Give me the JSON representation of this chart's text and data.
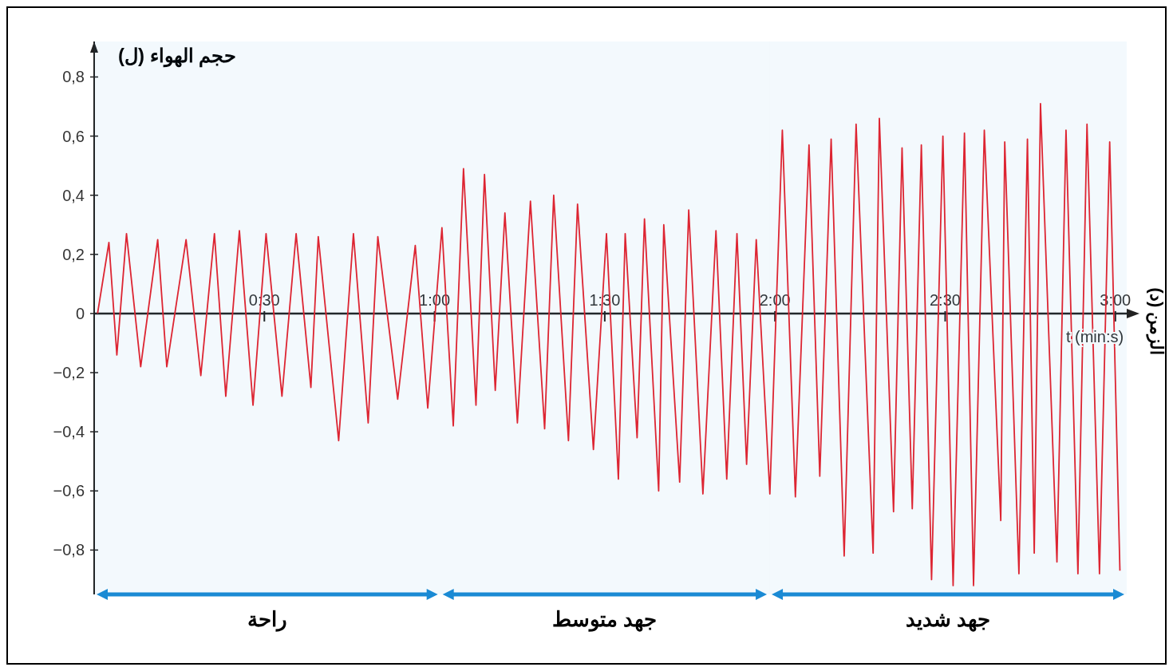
{
  "chart_data": {
    "type": "line",
    "ylabel": "حجم الهواء (ل)",
    "xlabel": "t (min:s)",
    "annotations": [
      "الزمن (د)"
    ],
    "line_style": "solid",
    "xlim": [
      0,
      182
    ],
    "ylim": [
      -0.95,
      0.92
    ],
    "xticks": [
      {
        "value": 30,
        "label": "0:30"
      },
      {
        "value": 60,
        "label": "1:00"
      },
      {
        "value": 90,
        "label": "1:30"
      },
      {
        "value": 120,
        "label": "2:00"
      },
      {
        "value": 150,
        "label": "2:30"
      },
      {
        "value": 180,
        "label": "3:00"
      }
    ],
    "yticks": [
      {
        "value": -0.8,
        "label": "−0,8"
      },
      {
        "value": -0.6,
        "label": "−0,6"
      },
      {
        "value": -0.4,
        "label": "−0,4"
      },
      {
        "value": -0.2,
        "label": "−0,2"
      },
      0,
      {
        "value": 0.2,
        "label": "0,2"
      },
      {
        "value": 0.4,
        "label": "0,4"
      },
      {
        "value": 0.6,
        "label": "0,6"
      },
      {
        "value": 0.8,
        "label": "0,8"
      }
    ],
    "bands": [
      {
        "axis": "x",
        "from": 0,
        "to": 61,
        "label": "راحة",
        "color": "#1a8ad4"
      },
      {
        "axis": "x",
        "from": 61,
        "to": 119,
        "label": "جهد متوسط",
        "color": "#1a8ad4"
      },
      {
        "axis": "x",
        "from": 119,
        "to": 182,
        "label": "جهد شديد",
        "color": "#1a8ad4"
      }
    ],
    "x": [
      0.6,
      2.6,
      4.0,
      5.7,
      8.2,
      11.2,
      12.8,
      16.2,
      18.8,
      21.2,
      23.2,
      25.6,
      28.0,
      30.3,
      33.1,
      35.6,
      38.2,
      39.5,
      43.1,
      45.7,
      48.3,
      50.0,
      53.5,
      56.6,
      58.8,
      61.3,
      63.3,
      65.1,
      67.3,
      68.8,
      70.7,
      72.4,
      74.6,
      76.9,
      79.4,
      81.0,
      83.6,
      85.2,
      88.0,
      90.3,
      92.4,
      93.6,
      95.7,
      97.0,
      99.5,
      100.4,
      103.2,
      104.8,
      107.3,
      109.6,
      111.5,
      113.3,
      115.0,
      116.7,
      119.1,
      121.3,
      123.6,
      126.0,
      127.9,
      129.9,
      132.2,
      134.3,
      137.3,
      138.4,
      140.9,
      142.4,
      144.2,
      145.8,
      147.6,
      149.6,
      151.4,
      153.4,
      155.0,
      156.9,
      159.8,
      160.5,
      163.0,
      164.5,
      165.7,
      166.8,
      169.7,
      171.3,
      173.4,
      175.0,
      177.2,
      179.0,
      180.8
    ],
    "series": [
      {
        "color": "#e8202a",
        "values": [
          0,
          0.24,
          -0.14,
          0.27,
          -0.18,
          0.25,
          -0.18,
          0.25,
          -0.21,
          0.27,
          -0.28,
          0.28,
          -0.31,
          0.27,
          -0.28,
          0.27,
          -0.25,
          0.26,
          -0.43,
          0.27,
          -0.37,
          0.26,
          -0.29,
          0.23,
          -0.32,
          0.29,
          -0.38,
          0.49,
          -0.31,
          0.47,
          -0.26,
          0.34,
          -0.37,
          0.38,
          -0.39,
          0.4,
          -0.43,
          0.37,
          -0.46,
          0.27,
          -0.56,
          0.27,
          -0.42,
          0.32,
          -0.6,
          0.3,
          -0.57,
          0.35,
          -0.61,
          0.28,
          -0.56,
          0.27,
          -0.51,
          0.25,
          -0.61,
          0.62,
          -0.62,
          0.57,
          -0.55,
          0.59,
          -0.82,
          0.64,
          -0.81,
          0.66,
          -0.67,
          0.56,
          -0.66,
          0.57,
          -0.9,
          0.6,
          -0.92,
          0.61,
          -0.92,
          0.62,
          -0.7,
          0.58,
          -0.88,
          0.59,
          -0.81,
          0.71,
          -0.84,
          0.62,
          -0.88,
          0.64,
          -0.88,
          0.58,
          -0.87
        ]
      }
    ]
  }
}
